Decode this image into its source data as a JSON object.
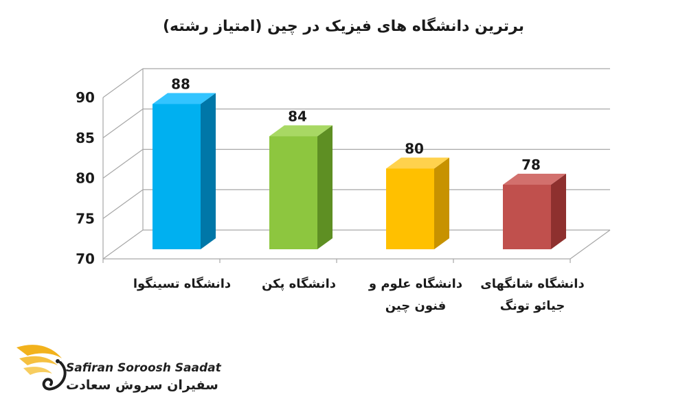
{
  "chart_data": {
    "type": "bar",
    "title": "برترین دانشگاه های فیزیک در چین (امتیاز رشته)",
    "categories": [
      [
        "دانشگاه تسینگوا"
      ],
      [
        "دانشگاه پکن"
      ],
      [
        "دانشگاه علوم و",
        "فنون چین"
      ],
      [
        "دانشگاه شانگهای",
        "جیائو تونگ"
      ]
    ],
    "values": [
      88,
      84,
      80,
      78
    ],
    "data_labels": [
      "88",
      "84",
      "80",
      "78"
    ],
    "ylim": [
      70,
      90
    ],
    "yticks": [
      "70",
      "75",
      "80",
      "85",
      "90"
    ],
    "grid": true,
    "legend": "none",
    "style": "3d-column",
    "colors": [
      {
        "front": "#00b0f0",
        "side": "#0077a8",
        "top": "#33c4ff"
      },
      {
        "front": "#8dc63f",
        "side": "#5e8f23",
        "top": "#a8d864"
      },
      {
        "front": "#ffc000",
        "side": "#c79200",
        "top": "#ffd24d"
      },
      {
        "front": "#c0504d",
        "side": "#8e302e",
        "top": "#d2706d"
      }
    ]
  },
  "logo": {
    "text_en": "Safiran Soroosh Saadat",
    "text_fa": "سفیران سروش سعادت",
    "colors": {
      "wing": "#f2b21c",
      "text": "#1f1f1f"
    }
  }
}
